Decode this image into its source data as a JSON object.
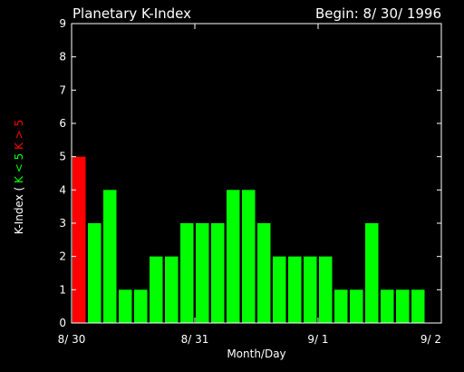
{
  "chart_data": {
    "type": "bar",
    "title": "Planetary K-Index",
    "subtitle": "Begin: 8/ 30/ 1996",
    "xlabel": "Month/Day",
    "ylabel": {
      "main": "K-Index",
      "open": "(",
      "low": "K < 5",
      "high": "K > 5"
    },
    "ylim": [
      0,
      9
    ],
    "yticks": [
      "0",
      "1",
      "2",
      "3",
      "4",
      "5",
      "6",
      "7",
      "8",
      "9"
    ],
    "xticks": [
      {
        "label": "8/ 30",
        "day": 0
      },
      {
        "label": "8/ 31",
        "day": 1
      },
      {
        "label": "9/ 1",
        "day": 2
      },
      {
        "label": "9/ 2",
        "day": 3
      }
    ],
    "bar_slot_fraction_of_day": 0.125,
    "values": [
      5,
      3,
      4,
      1,
      1,
      2,
      2,
      3,
      3,
      3,
      4,
      4,
      3,
      2,
      2,
      2,
      2,
      1,
      1,
      3,
      1,
      1,
      1
    ],
    "threshold": 5,
    "colors": {
      "low": "#00ff00",
      "high": "#ff0000",
      "axis": "#ffffff",
      "background": "#000000"
    }
  }
}
